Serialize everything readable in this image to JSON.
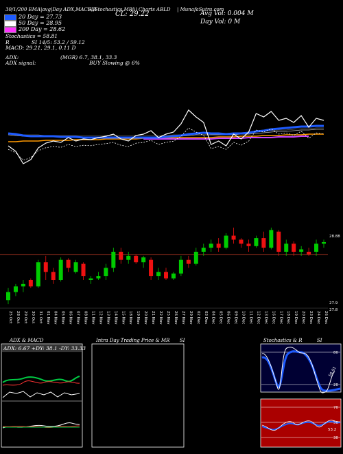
{
  "header": {
    "top_line": "30/1/200 EMA|avg|Day ADX,MACD,R",
    "top_line2": "SI,Stochastics,MR",
    "symbol_info": "A) Charts ABLD",
    "site": "| MunafaSutra.com",
    "cl_label": "CL: 29.22",
    "avg_vol": "Avg Vol: 0.004  M",
    "day_vol": "Day Vol: 0  M"
  },
  "legend": [
    {
      "label": "20  Day = 27.73",
      "color": "#1e5bff"
    },
    {
      "label": "50  Day = 28.95",
      "color": "#ffffff"
    },
    {
      "label": "200  Day = 28.62",
      "color": "#ff33ff"
    }
  ],
  "stats": {
    "stochastics": "Stochastics = 58.81",
    "rsi_line1": "R",
    "rsi_line2": "SI 14/5: 53.2  / 59.12",
    "macd": "MACD: 29.21, 29.1, 0.11 D",
    "adx_label": "ADX:",
    "adx_value": "(MGR) 6.7, 38.1, 33.3",
    "adx_signal_label": "ADX  signal:",
    "adx_signal_value": "BUY Slowing @ 6%"
  },
  "colors": {
    "ema_blue": "#1e5bff",
    "ema_orange": "#ff9900",
    "ema_purple": "#cc44ff",
    "up": "#00cc00",
    "down": "#ee1111",
    "ref_line": "#aa3322"
  },
  "chart_data": {
    "type": "candlestick",
    "dates": [
      "25 Oct",
      "28 Oct",
      "29 Oct",
      "30 Oct",
      "31 Oct",
      "01 Nov",
      "04 Nov",
      "05 Nov",
      "06 Nov",
      "07 Nov",
      "08 Nov",
      "11 Nov",
      "12 Nov",
      "13 Nov",
      "14 Nov",
      "15 Nov",
      "18 Nov",
      "19 Nov",
      "20 Nov",
      "21 Nov",
      "22 Nov",
      "25 Nov",
      "26 Nov",
      "27 Nov",
      "29 Nov",
      "02 Dec",
      "03 Dec",
      "04 Dec",
      "05 Dec",
      "06 Dec",
      "09 Dec",
      "10 Dec",
      "11 Dec",
      "12 Dec",
      "13 Dec",
      "16 Dec",
      "17 Dec",
      "18 Dec",
      "19 Dec",
      "20 Dec",
      "23 Dec",
      "24 Dec",
      "26 Dec"
    ],
    "price_labels": {
      "top": "28.88",
      "mid": "27.9",
      "bottom": "27.8"
    },
    "ohlc": [
      [
        27.95,
        28.1,
        27.9,
        28.05
      ],
      [
        28.05,
        28.15,
        28.0,
        28.12
      ],
      [
        28.12,
        28.2,
        28.05,
        28.15
      ],
      [
        28.2,
        28.22,
        28.1,
        28.12
      ],
      [
        28.12,
        28.45,
        28.1,
        28.42
      ],
      [
        28.42,
        28.5,
        28.2,
        28.3
      ],
      [
        28.3,
        28.35,
        28.15,
        28.2
      ],
      [
        28.2,
        28.48,
        28.18,
        28.45
      ],
      [
        28.45,
        28.47,
        28.3,
        28.35
      ],
      [
        28.3,
        28.45,
        28.28,
        28.42
      ],
      [
        28.4,
        28.42,
        28.2,
        28.25
      ],
      [
        28.2,
        28.25,
        28.15,
        28.22
      ],
      [
        28.22,
        28.3,
        28.2,
        28.25
      ],
      [
        28.25,
        28.4,
        28.2,
        28.35
      ],
      [
        28.35,
        28.6,
        28.3,
        28.55
      ],
      [
        28.55,
        28.6,
        28.4,
        28.45
      ],
      [
        28.45,
        28.55,
        28.4,
        28.5
      ],
      [
        28.5,
        28.52,
        28.4,
        28.42
      ],
      [
        28.42,
        28.5,
        28.35,
        28.48
      ],
      [
        28.45,
        28.48,
        28.2,
        28.25
      ],
      [
        28.25,
        28.35,
        28.2,
        28.3
      ],
      [
        28.3,
        28.35,
        28.2,
        28.22
      ],
      [
        28.22,
        28.3,
        28.2,
        28.28
      ],
      [
        28.28,
        28.5,
        28.25,
        28.45
      ],
      [
        28.45,
        28.5,
        28.35,
        28.4
      ],
      [
        28.4,
        28.6,
        28.38,
        28.55
      ],
      [
        28.55,
        28.65,
        28.5,
        28.6
      ],
      [
        28.6,
        28.7,
        28.55,
        28.65
      ],
      [
        28.65,
        28.72,
        28.55,
        28.6
      ],
      [
        28.6,
        28.78,
        28.58,
        28.75
      ],
      [
        28.75,
        28.85,
        28.65,
        28.7
      ],
      [
        28.7,
        28.72,
        28.6,
        28.65
      ],
      [
        28.65,
        28.7,
        28.55,
        28.62
      ],
      [
        28.62,
        28.75,
        28.6,
        28.72
      ],
      [
        28.72,
        28.8,
        28.55,
        28.6
      ],
      [
        28.6,
        28.85,
        28.58,
        28.82
      ],
      [
        28.8,
        28.82,
        28.5,
        28.55
      ],
      [
        28.55,
        28.7,
        28.5,
        28.65
      ],
      [
        28.65,
        28.68,
        28.5,
        28.55
      ],
      [
        28.55,
        28.62,
        28.5,
        28.58
      ],
      [
        28.55,
        28.6,
        28.5,
        28.52
      ],
      [
        28.55,
        28.7,
        28.5,
        28.65
      ],
      [
        28.65,
        28.7,
        28.6,
        28.67
      ]
    ],
    "price_line": [
      0.62,
      0.7,
      0.88,
      0.82,
      0.65,
      0.58,
      0.55,
      0.57,
      0.5,
      0.55,
      0.52,
      0.53,
      0.5,
      0.48,
      0.45,
      0.52,
      0.55,
      0.47,
      0.45,
      0.4,
      0.5,
      0.45,
      0.42,
      0.3,
      0.1,
      0.2,
      0.28,
      0.6,
      0.55,
      0.62,
      0.45,
      0.52,
      0.42,
      0.15,
      0.2,
      0.12,
      0.25,
      0.22,
      0.28,
      0.18,
      0.35,
      0.22,
      0.25
    ],
    "ema20": [
      0.44,
      0.45,
      0.47,
      0.48,
      0.48,
      0.48,
      0.48,
      0.49,
      0.49,
      0.49,
      0.5,
      0.5,
      0.5,
      0.5,
      0.5,
      0.5,
      0.5,
      0.5,
      0.5,
      0.5,
      0.5,
      0.49,
      0.48,
      0.47,
      0.45,
      0.44,
      0.43,
      0.44,
      0.44,
      0.45,
      0.44,
      0.44,
      0.43,
      0.41,
      0.4,
      0.38,
      0.37,
      0.36,
      0.35,
      0.34,
      0.34,
      0.33,
      0.33
    ],
    "ema50": [
      0.46,
      0.47,
      0.48,
      0.48,
      0.48,
      0.49,
      0.49,
      0.49,
      0.49,
      0.49,
      0.49,
      0.49,
      0.49,
      0.49,
      0.49,
      0.49,
      0.49,
      0.49,
      0.49,
      0.49,
      0.49,
      0.49,
      0.48,
      0.48,
      0.47,
      0.46,
      0.46,
      0.46,
      0.46,
      0.46,
      0.46,
      0.45,
      0.45,
      0.44,
      0.43,
      0.42,
      0.41,
      0.41,
      0.4,
      0.39,
      0.39,
      0.38,
      0.38
    ],
    "ema200": [
      0.56,
      0.56,
      0.55,
      0.55,
      0.55,
      0.54,
      0.54,
      0.54,
      0.54,
      0.53,
      0.53,
      0.53,
      0.53,
      0.52,
      0.52,
      0.52,
      0.52,
      0.52,
      0.51,
      0.51,
      0.51,
      0.51,
      0.5,
      0.5,
      0.5,
      0.5,
      0.5,
      0.5,
      0.49,
      0.49,
      0.49,
      0.48,
      0.48,
      0.48,
      0.47,
      0.47,
      0.47,
      0.46,
      0.46,
      0.46,
      0.45,
      0.45,
      0.45
    ],
    "ema_purple_line": [
      null,
      null,
      null,
      null,
      null,
      null,
      null,
      null,
      null,
      null,
      null,
      null,
      null,
      null,
      null,
      null,
      null,
      null,
      0.52,
      0.52,
      0.52,
      0.52,
      0.52,
      0.52,
      0.52,
      0.52,
      0.52,
      0.52,
      0.51,
      0.51,
      0.51,
      0.51,
      0.5,
      0.5,
      0.5,
      0.5,
      0.49,
      0.49,
      0.49,
      0.48,
      0.48,
      null,
      null
    ]
  },
  "panels": {
    "adx": {
      "title": "ADX  & MACD",
      "readout": "ADX: 6.67 +DY: 38.1 -DY: 33.33"
    },
    "intraday": {
      "title": "Intra  Day Trading Price  & MR",
      "title_right": "SI"
    },
    "stoch": {
      "title": "Stochastics & R",
      "title_right": "SI",
      "labels": {
        "top": "80",
        "mid": "20",
        "value": "58.81",
        "r_top": "70",
        "r_mid": "50",
        "r_bot": "30",
        "r_value": "53.2"
      }
    }
  }
}
